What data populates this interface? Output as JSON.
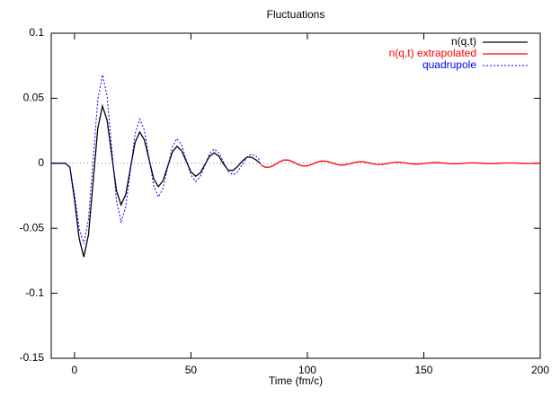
{
  "chart_data": {
    "type": "line",
    "title": "Fluctuations",
    "x_label": "Time (fm/c)",
    "xlim": [
      -10,
      200
    ],
    "xticks": [
      0,
      50,
      100,
      150,
      200
    ],
    "ylim": [
      -0.15,
      0.1
    ],
    "yticks": [
      -0.15,
      -0.1,
      -0.05,
      0,
      0.05,
      0.1
    ],
    "zero_axis": true,
    "legend": "top-right",
    "series": [
      {
        "name": "n(q,t)",
        "color": "#000000",
        "style": "solid",
        "x": [
          -10,
          -8,
          -6,
          -4,
          -2,
          0,
          2,
          4,
          6,
          8,
          10,
          12,
          14,
          16,
          18,
          20,
          22,
          24,
          26,
          28,
          30,
          32,
          34,
          36,
          38,
          40,
          42,
          44,
          46,
          48,
          50,
          52,
          54,
          56,
          58,
          60,
          62,
          64,
          66,
          68,
          70,
          72,
          74,
          76,
          78,
          80
        ],
        "values": [
          0,
          0,
          0,
          0,
          -0.003,
          -0.028,
          -0.058,
          -0.072,
          -0.055,
          -0.014,
          0.027,
          0.044,
          0.033,
          0.006,
          -0.021,
          -0.032,
          -0.024,
          -0.004,
          0.016,
          0.024,
          0.018,
          0.003,
          -0.012,
          -0.018,
          -0.0135,
          -0.0025,
          0.0085,
          0.013,
          0.0096,
          0.0015,
          -0.0066,
          -0.01,
          -0.0074,
          -0.001,
          0.0054,
          0.008,
          0.0054,
          -0.0006,
          -0.0053,
          -0.0056,
          -0.0026,
          0.0016,
          0.0046,
          0.0047,
          0.0025,
          -0.0005
        ]
      },
      {
        "name": "n(q,t) extrapolated",
        "color": "#ff0000",
        "style": "solid",
        "x": [
          80,
          82,
          84,
          86,
          88,
          90,
          92,
          94,
          96,
          98,
          100,
          102,
          104,
          106,
          108,
          110,
          112,
          114,
          116,
          118,
          120,
          122,
          124,
          126,
          128,
          130,
          132,
          134,
          136,
          138,
          140,
          142,
          144,
          146,
          148,
          150,
          152,
          154,
          156,
          158,
          160,
          162,
          164,
          166,
          168,
          170,
          172,
          174,
          176,
          178,
          180,
          182,
          184,
          186,
          188,
          190,
          192,
          194,
          196,
          198,
          200
        ],
        "values": [
          -0.0013,
          -0.0031,
          -0.0029,
          -0.0012,
          0.0011,
          0.0025,
          0.0024,
          0.0009,
          -0.0009,
          -0.0021,
          -0.002,
          -0.0008,
          0.0007,
          0.0017,
          0.0016,
          0.0006,
          -0.0006,
          -0.0014,
          -0.0013,
          -0.0005,
          0.0005,
          0.0011,
          0.0011,
          0.0004,
          -0.0004,
          -0.0009,
          -0.0009,
          -0.0003,
          0.0003,
          0.0008,
          0.0007,
          0.0003,
          -0.0003,
          -0.0006,
          -0.0006,
          -0.0002,
          0.0002,
          0.0005,
          0.0005,
          0.0002,
          -0.0002,
          -0.0004,
          -0.0004,
          -0.0002,
          0.0001,
          0.0003,
          0.0003,
          0.0001,
          -0.0001,
          -0.0003,
          -0.0003,
          -0.0001,
          0.0001,
          0.0002,
          0.0002,
          0.0001,
          -0.0001,
          -0.0002,
          -0.0002,
          -0.0001,
          0
        ]
      },
      {
        "name": "quadrupole",
        "color": "#0000ff",
        "style": "dotted",
        "x": [
          -10,
          -8,
          -6,
          -4,
          -2,
          0,
          2,
          4,
          6,
          8,
          10,
          12,
          14,
          16,
          18,
          20,
          22,
          24,
          26,
          28,
          30,
          32,
          34,
          36,
          38,
          40,
          42,
          44,
          46,
          48,
          50,
          52,
          54,
          56,
          58,
          60,
          62,
          64,
          66,
          68,
          70,
          72,
          74,
          76,
          78,
          80
        ],
        "values": [
          0,
          0,
          0,
          0,
          -0.003,
          -0.024,
          -0.05,
          -0.062,
          -0.043,
          0.003,
          0.049,
          0.068,
          0.0515,
          0.0115,
          -0.0285,
          -0.045,
          -0.0335,
          -0.0055,
          0.0225,
          0.034,
          0.0252,
          0.004,
          -0.0172,
          -0.026,
          -0.0194,
          -0.0035,
          0.0124,
          0.019,
          0.0142,
          0.0025,
          -0.0092,
          -0.014,
          -0.0103,
          -0.0015,
          0.0074,
          0.011,
          0.0081,
          0.001,
          -0.0061,
          -0.009,
          -0.0067,
          -0.001,
          0.0047,
          0.007,
          0.0054,
          0.0015
        ]
      }
    ]
  }
}
